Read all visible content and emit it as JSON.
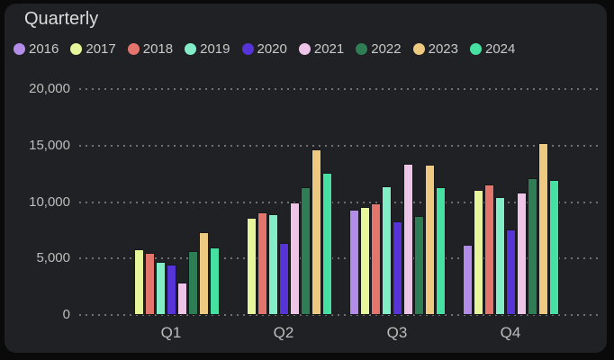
{
  "theme": {
    "page_bg": "#0a0a0a",
    "card_bg": "#202124",
    "title_color": "#dcdcdc",
    "legend_text": "#c9c9c9",
    "axis_text": "#bdbdbd",
    "grid_dot": "#8a8a8a",
    "bar_border": "#17181b"
  },
  "chart_data": {
    "type": "bar",
    "title": "Quarterly",
    "categories": [
      "Q1",
      "Q2",
      "Q3",
      "Q4"
    ],
    "series": [
      {
        "name": "2016",
        "color": "#b28ce6",
        "values": [
          null,
          null,
          9300,
          6200
        ]
      },
      {
        "name": "2017",
        "color": "#e7f59b",
        "values": [
          5850,
          8600,
          9550,
          11100
        ]
      },
      {
        "name": "2018",
        "color": "#e3756c",
        "values": [
          5500,
          9050,
          9900,
          11550
        ]
      },
      {
        "name": "2019",
        "color": "#83edc8",
        "values": [
          4700,
          8900,
          11400,
          10450
        ]
      },
      {
        "name": "2020",
        "color": "#5634d8",
        "values": [
          4450,
          6400,
          8300,
          7550
        ]
      },
      {
        "name": "2021",
        "color": "#eec5e8",
        "values": [
          2900,
          9950,
          13400,
          10800
        ]
      },
      {
        "name": "2022",
        "color": "#2e7d54",
        "values": [
          5650,
          11350,
          8750,
          12150
        ]
      },
      {
        "name": "2023",
        "color": "#edca80",
        "values": [
          7300,
          14650,
          13300,
          15200
        ]
      },
      {
        "name": "2024",
        "color": "#47e0a3",
        "values": [
          6000,
          12550,
          11300,
          11950
        ]
      }
    ],
    "xlabel": "",
    "ylabel": "",
    "ylim": [
      0,
      20000
    ],
    "yticks": [
      0,
      5000,
      10000,
      15000,
      20000
    ],
    "ytick_labels": [
      "0",
      "5,000",
      "10,000",
      "15,000",
      "20,000"
    ],
    "grid": "horizontal-dotted",
    "legend_position": "top"
  }
}
